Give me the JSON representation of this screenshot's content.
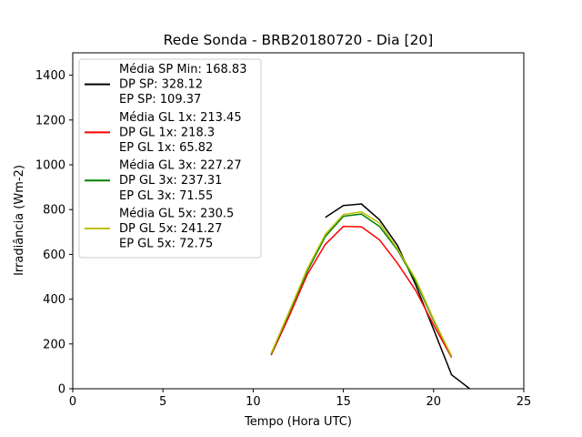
{
  "chart_data": {
    "type": "line",
    "title": "Rede Sonda - BRB20180720 - Dia [20]",
    "xlabel": "Tempo (Hora UTC)",
    "ylabel": "Irradiância (Wm-2)",
    "xlim": [
      0,
      25
    ],
    "ylim": [
      0,
      1500
    ],
    "xticks": [
      0,
      5,
      10,
      15,
      20,
      25
    ],
    "yticks": [
      0,
      200,
      400,
      600,
      800,
      1000,
      1200,
      1400
    ],
    "grid": false,
    "legend_position": "top-left",
    "series": [
      {
        "color": "#000000",
        "legend_lines": [
          "Média SP Min: 168.83",
          "DP SP: 328.12",
          "EP SP: 109.37"
        ],
        "x": [
          14,
          15,
          16,
          17,
          18,
          19,
          20,
          21,
          22
        ],
        "y": [
          765,
          818,
          825,
          755,
          640,
          465,
          265,
          62,
          0
        ]
      },
      {
        "color": "#ff0000",
        "legend_lines": [
          "Média GL 1x: 213.45",
          "DP GL 1x: 218.3",
          "EP GL 1x: 65.82"
        ],
        "x": [
          11,
          12,
          13,
          14,
          15,
          16,
          17,
          18,
          19,
          20,
          21
        ],
        "y": [
          150,
          325,
          510,
          645,
          725,
          723,
          665,
          560,
          440,
          285,
          140
        ]
      },
      {
        "color": "#008000",
        "legend_lines": [
          "Média GL 3x: 227.27",
          "DP GL 3x: 237.31",
          "EP GL 3x: 71.55"
        ],
        "x": [
          11,
          12,
          13,
          14,
          15,
          16,
          17,
          18,
          19,
          20,
          21
        ],
        "y": [
          155,
          340,
          525,
          680,
          770,
          780,
          725,
          620,
          480,
          305,
          145
        ]
      },
      {
        "color": "#bfbf00",
        "legend_lines": [
          "Média GL 5x: 230.5",
          "DP GL 5x: 241.27",
          "EP GL 5x: 72.75"
        ],
        "x": [
          11,
          12,
          13,
          14,
          15,
          16,
          17,
          18,
          19,
          20,
          21
        ],
        "y": [
          158,
          345,
          535,
          690,
          778,
          790,
          740,
          625,
          490,
          310,
          145
        ]
      }
    ]
  }
}
